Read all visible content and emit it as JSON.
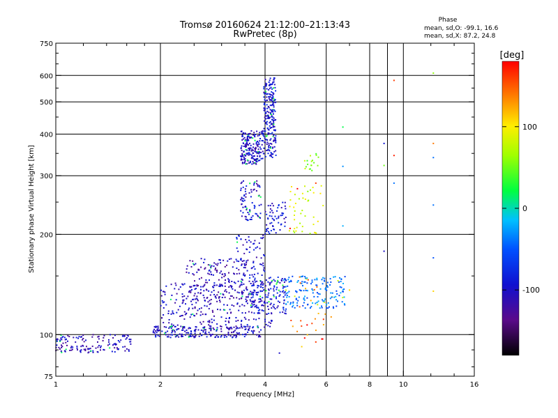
{
  "chart_data": {
    "type": "scatter",
    "title": "Tromsø 20160624 21:12:00–21:13:43",
    "subtitle": "RwPretec (8p)",
    "xlabel": "Frequency [MHz]",
    "ylabel": "Stationary phase Virtual Height [km]",
    "x_scale": "log",
    "y_scale": "log",
    "xlim": [
      1,
      16
    ],
    "ylim": [
      75,
      750
    ],
    "x_ticks": [
      1,
      2,
      4,
      6,
      8,
      10,
      16
    ],
    "y_ticks": [
      75,
      100,
      200,
      300,
      400,
      500,
      600,
      750
    ],
    "grid": true,
    "phase_box": {
      "title": "Phase",
      "line_o": "mean, sd,O: -99.1, 16.6",
      "line_x": "mean, sd,X:  87.2, 24.8"
    },
    "colorbar": {
      "label": "[deg]",
      "range": [
        -180,
        180
      ],
      "tick_values": [
        100,
        0,
        -100
      ],
      "tick_labels": [
        "100",
        "0",
        "-100"
      ]
    },
    "clusters": [
      {
        "fmin": 1.0,
        "fmax": 1.65,
        "hmin": 88,
        "hmax": 100,
        "phase": -105,
        "n": 140
      },
      {
        "fmin": 1.9,
        "fmax": 3.9,
        "hmin": 98,
        "hmax": 106,
        "phase": -100,
        "n": 220
      },
      {
        "fmin": 2.0,
        "fmax": 4.2,
        "hmin": 105,
        "hmax": 145,
        "phase": -105,
        "n": 260
      },
      {
        "fmin": 2.3,
        "fmax": 3.6,
        "hmin": 125,
        "hmax": 170,
        "phase": -110,
        "n": 180
      },
      {
        "fmin": 3.3,
        "fmax": 4.0,
        "hmin": 150,
        "hmax": 200,
        "phase": -100,
        "n": 70
      },
      {
        "fmin": 3.6,
        "fmax": 4.6,
        "hmin": 115,
        "hmax": 150,
        "phase": -90,
        "n": 160
      },
      {
        "fmin": 4.5,
        "fmax": 6.8,
        "hmin": 120,
        "hmax": 150,
        "phase": -40,
        "n": 160
      },
      {
        "fmin": 3.4,
        "fmax": 3.9,
        "hmin": 220,
        "hmax": 290,
        "phase": -100,
        "n": 80
      },
      {
        "fmin": 4.0,
        "fmax": 4.6,
        "hmin": 200,
        "hmax": 250,
        "phase": -95,
        "n": 60
      },
      {
        "fmin": 3.4,
        "fmax": 3.95,
        "hmin": 325,
        "hmax": 410,
        "phase": -100,
        "n": 200
      },
      {
        "fmin": 3.95,
        "fmax": 4.3,
        "hmin": 340,
        "hmax": 590,
        "phase": -95,
        "n": 230
      },
      {
        "fmin": 4.7,
        "fmax": 5.9,
        "hmin": 200,
        "hmax": 280,
        "phase": 80,
        "n": 45
      },
      {
        "fmin": 5.2,
        "fmax": 5.7,
        "hmin": 310,
        "hmax": 350,
        "phase": 60,
        "n": 18
      },
      {
        "fmin": 4.7,
        "fmax": 6.0,
        "hmin": 95,
        "hmax": 150,
        "phase": 140,
        "n": 25
      }
    ],
    "isolated_points": [
      {
        "f": 9.4,
        "h": 580,
        "phase": 160
      },
      {
        "f": 12.2,
        "h": 610,
        "phase": 60
      },
      {
        "f": 6.7,
        "h": 420,
        "phase": 20
      },
      {
        "f": 8.8,
        "h": 375,
        "phase": -90
      },
      {
        "f": 12.2,
        "h": 375,
        "phase": 140
      },
      {
        "f": 9.4,
        "h": 345,
        "phase": 170
      },
      {
        "f": 12.2,
        "h": 340,
        "phase": -40
      },
      {
        "f": 6.7,
        "h": 320,
        "phase": -30
      },
      {
        "f": 8.8,
        "h": 322,
        "phase": 50
      },
      {
        "f": 9.4,
        "h": 285,
        "phase": -40
      },
      {
        "f": 5.6,
        "h": 285,
        "phase": 160
      },
      {
        "f": 12.2,
        "h": 245,
        "phase": -40
      },
      {
        "f": 6.7,
        "h": 212,
        "phase": -20
      },
      {
        "f": 8.8,
        "h": 178,
        "phase": -100
      },
      {
        "f": 12.2,
        "h": 170,
        "phase": -50
      },
      {
        "f": 12.2,
        "h": 135,
        "phase": 110
      },
      {
        "f": 7.0,
        "h": 136,
        "phase": 110
      },
      {
        "f": 6.2,
        "h": 113,
        "phase": 130
      },
      {
        "f": 5.1,
        "h": 92,
        "phase": 110
      },
      {
        "f": 5.6,
        "h": 95,
        "phase": 160
      },
      {
        "f": 4.4,
        "h": 88,
        "phase": -100
      }
    ]
  }
}
